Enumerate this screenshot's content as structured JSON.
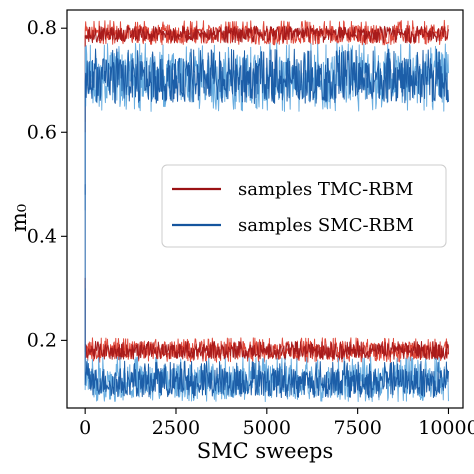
{
  "chart_data": {
    "type": "line",
    "xlabel": "SMC sweeps",
    "ylabel": "m₀",
    "xlim": [
      -500,
      10400
    ],
    "ylim": [
      0.07,
      0.835
    ],
    "x_ticks": [
      0,
      2500,
      5000,
      7500,
      10000
    ],
    "x_tick_labels": [
      "0",
      "2500",
      "5000",
      "7500",
      "10000"
    ],
    "y_ticks": [
      0.2,
      0.4,
      0.6,
      0.8
    ],
    "y_tick_labels": [
      "0.2",
      "0.4",
      "0.6",
      "0.8"
    ],
    "grid": false,
    "legend_position": "center-right",
    "legend": [
      {
        "label": "samples TMC-RBM",
        "color": "#9b1214"
      },
      {
        "label": "samples SMC-RBM",
        "color": "#15559e"
      }
    ],
    "series": [
      {
        "label_ref": 0,
        "role": "tmc-high",
        "color": "#e04a3c",
        "mean": 0.789,
        "low": 0.768,
        "high": 0.815,
        "x_start": 0,
        "x_end": 10000,
        "initial": 0.62
      },
      {
        "label_ref": 0,
        "role": "tmc-high",
        "color": "#a81b1b",
        "mean": 0.788,
        "low": 0.772,
        "high": 0.804,
        "x_start": 0,
        "x_end": 10000,
        "initial": 0.6
      },
      {
        "label_ref": 0,
        "role": "tmc-low",
        "color": "#e04a3c",
        "mean": 0.181,
        "low": 0.158,
        "high": 0.205,
        "x_start": 0,
        "x_end": 10000,
        "initial": 0.3
      },
      {
        "label_ref": 0,
        "role": "tmc-low",
        "color": "#a81b1b",
        "mean": 0.18,
        "low": 0.163,
        "high": 0.198,
        "x_start": 0,
        "x_end": 10000,
        "initial": 0.32
      },
      {
        "label_ref": 1,
        "role": "smc-high",
        "color": "#6aaee0",
        "mean": 0.705,
        "low": 0.64,
        "high": 0.772,
        "x_start": 0,
        "x_end": 10000,
        "initial": 0.45
      },
      {
        "label_ref": 1,
        "role": "smc-high",
        "color": "#1c5ea8",
        "mean": 0.703,
        "low": 0.655,
        "high": 0.76,
        "x_start": 0,
        "x_end": 10000,
        "initial": 0.48
      },
      {
        "label_ref": 1,
        "role": "smc-low",
        "color": "#6aaee0",
        "mean": 0.122,
        "low": 0.082,
        "high": 0.168,
        "x_start": 0,
        "x_end": 10000,
        "initial": 0.3
      },
      {
        "label_ref": 1,
        "role": "smc-low",
        "color": "#1c5ea8",
        "mean": 0.121,
        "low": 0.09,
        "high": 0.16,
        "x_start": 0,
        "x_end": 10000,
        "initial": 0.5
      }
    ]
  }
}
